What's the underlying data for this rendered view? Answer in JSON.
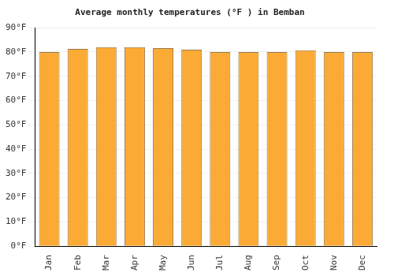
{
  "chart_data": {
    "type": "bar",
    "title": "Average monthly temperatures (°F ) in Bemban",
    "categories": [
      "Jan",
      "Feb",
      "Mar",
      "Apr",
      "May",
      "Jun",
      "Jul",
      "Aug",
      "Sep",
      "Oct",
      "Nov",
      "Dec"
    ],
    "values": [
      80,
      81.3,
      82,
      82,
      81.6,
      81,
      80,
      80,
      80,
      80.7,
      80,
      80
    ],
    "color": "#fbab35",
    "ylim": [
      0,
      90
    ],
    "yticks": [
      {
        "value": 0,
        "label": "0°F"
      },
      {
        "value": 10,
        "label": "10°F"
      },
      {
        "value": 20,
        "label": "20°F"
      },
      {
        "value": 30,
        "label": "30°F"
      },
      {
        "value": 40,
        "label": "40°F"
      },
      {
        "value": 50,
        "label": "50°F"
      },
      {
        "value": 60,
        "label": "60°F"
      },
      {
        "value": 70,
        "label": "70°F"
      },
      {
        "value": 80,
        "label": "80°F"
      },
      {
        "value": 90,
        "label": "90°F"
      }
    ],
    "grid": true
  }
}
